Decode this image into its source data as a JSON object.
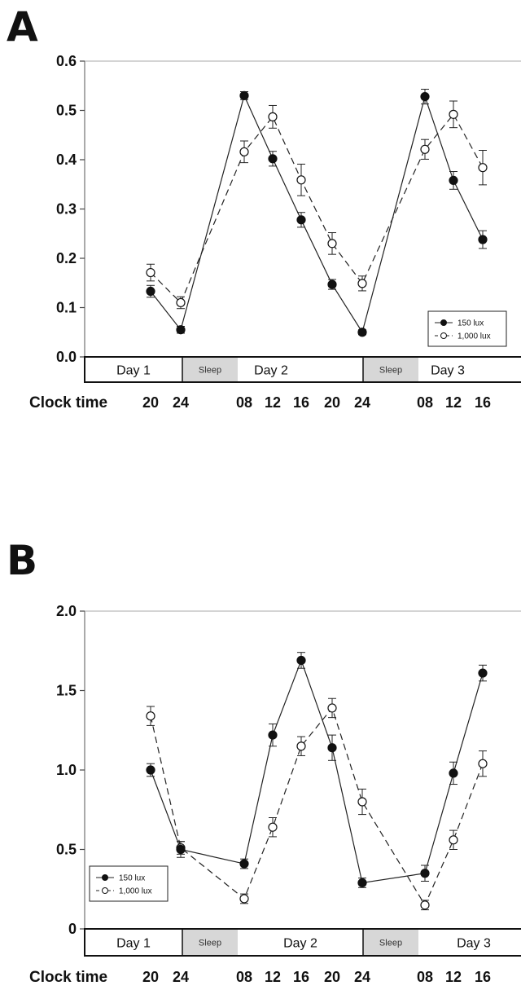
{
  "chart_data": [
    {
      "type": "line",
      "panel": "A",
      "ylim": [
        0.0,
        0.6
      ],
      "yticks": [
        "0.0",
        "0.1",
        "0.2",
        "0.3",
        "0.4",
        "0.5",
        "0.6"
      ],
      "x_label": "Clock time",
      "x_ticks": [
        "20",
        "24",
        "08",
        "12",
        "16",
        "20",
        "24",
        "08",
        "12",
        "16"
      ],
      "days": [
        "Day 1",
        "Day 2",
        "Day 3"
      ],
      "sleep_label": "Sleep",
      "legend_position": "bottom-right",
      "series": [
        {
          "name": "150 lux",
          "marker": "filled",
          "dash": false,
          "x": [
            20,
            24,
            32,
            36,
            40,
            44,
            48,
            56,
            60,
            64
          ],
          "values": [
            0.133,
            0.055,
            0.53,
            0.402,
            0.278,
            0.147,
            0.05,
            0.528,
            0.358,
            0.238
          ],
          "errors": [
            0.012,
            0.007,
            0.008,
            0.015,
            0.015,
            0.01,
            0.005,
            0.015,
            0.018,
            0.018
          ]
        },
        {
          "name": "1,000 lux",
          "marker": "open",
          "dash": true,
          "x": [
            20,
            24,
            32,
            36,
            40,
            44,
            48,
            56,
            60,
            64
          ],
          "values": [
            0.171,
            0.11,
            0.416,
            0.487,
            0.359,
            0.23,
            0.149,
            0.421,
            0.492,
            0.384
          ],
          "errors": [
            0.017,
            0.012,
            0.022,
            0.023,
            0.032,
            0.022,
            0.015,
            0.02,
            0.027,
            0.035
          ]
        }
      ]
    },
    {
      "type": "line",
      "panel": "B",
      "ylim": [
        0,
        2.0
      ],
      "yticks": [
        "0",
        "0.5",
        "1.0",
        "1.5",
        "2.0"
      ],
      "x_label": "Clock time",
      "x_ticks": [
        "20",
        "24",
        "08",
        "12",
        "16",
        "20",
        "24",
        "08",
        "12",
        "16"
      ],
      "days": [
        "Day 1",
        "Day 2",
        "Day 3"
      ],
      "sleep_label": "Sleep",
      "legend_position": "bottom-left",
      "series": [
        {
          "name": "150 lux",
          "marker": "filled",
          "dash": false,
          "x": [
            20,
            24,
            32,
            36,
            40,
            44,
            48,
            56,
            60,
            64
          ],
          "values": [
            1.0,
            0.5,
            0.41,
            1.22,
            1.69,
            1.14,
            0.29,
            0.35,
            0.98,
            1.61
          ],
          "errors": [
            0.04,
            0.05,
            0.03,
            0.07,
            0.05,
            0.08,
            0.03,
            0.05,
            0.07,
            0.05
          ]
        },
        {
          "name": "1,000 lux",
          "marker": "open",
          "dash": true,
          "x": [
            20,
            24,
            32,
            36,
            40,
            44,
            48,
            56,
            60,
            64
          ],
          "values": [
            1.34,
            0.51,
            0.19,
            0.64,
            1.15,
            1.39,
            0.8,
            0.15,
            0.56,
            1.04
          ],
          "errors": [
            0.06,
            0.04,
            0.03,
            0.06,
            0.06,
            0.06,
            0.08,
            0.03,
            0.06,
            0.08
          ]
        }
      ]
    }
  ]
}
